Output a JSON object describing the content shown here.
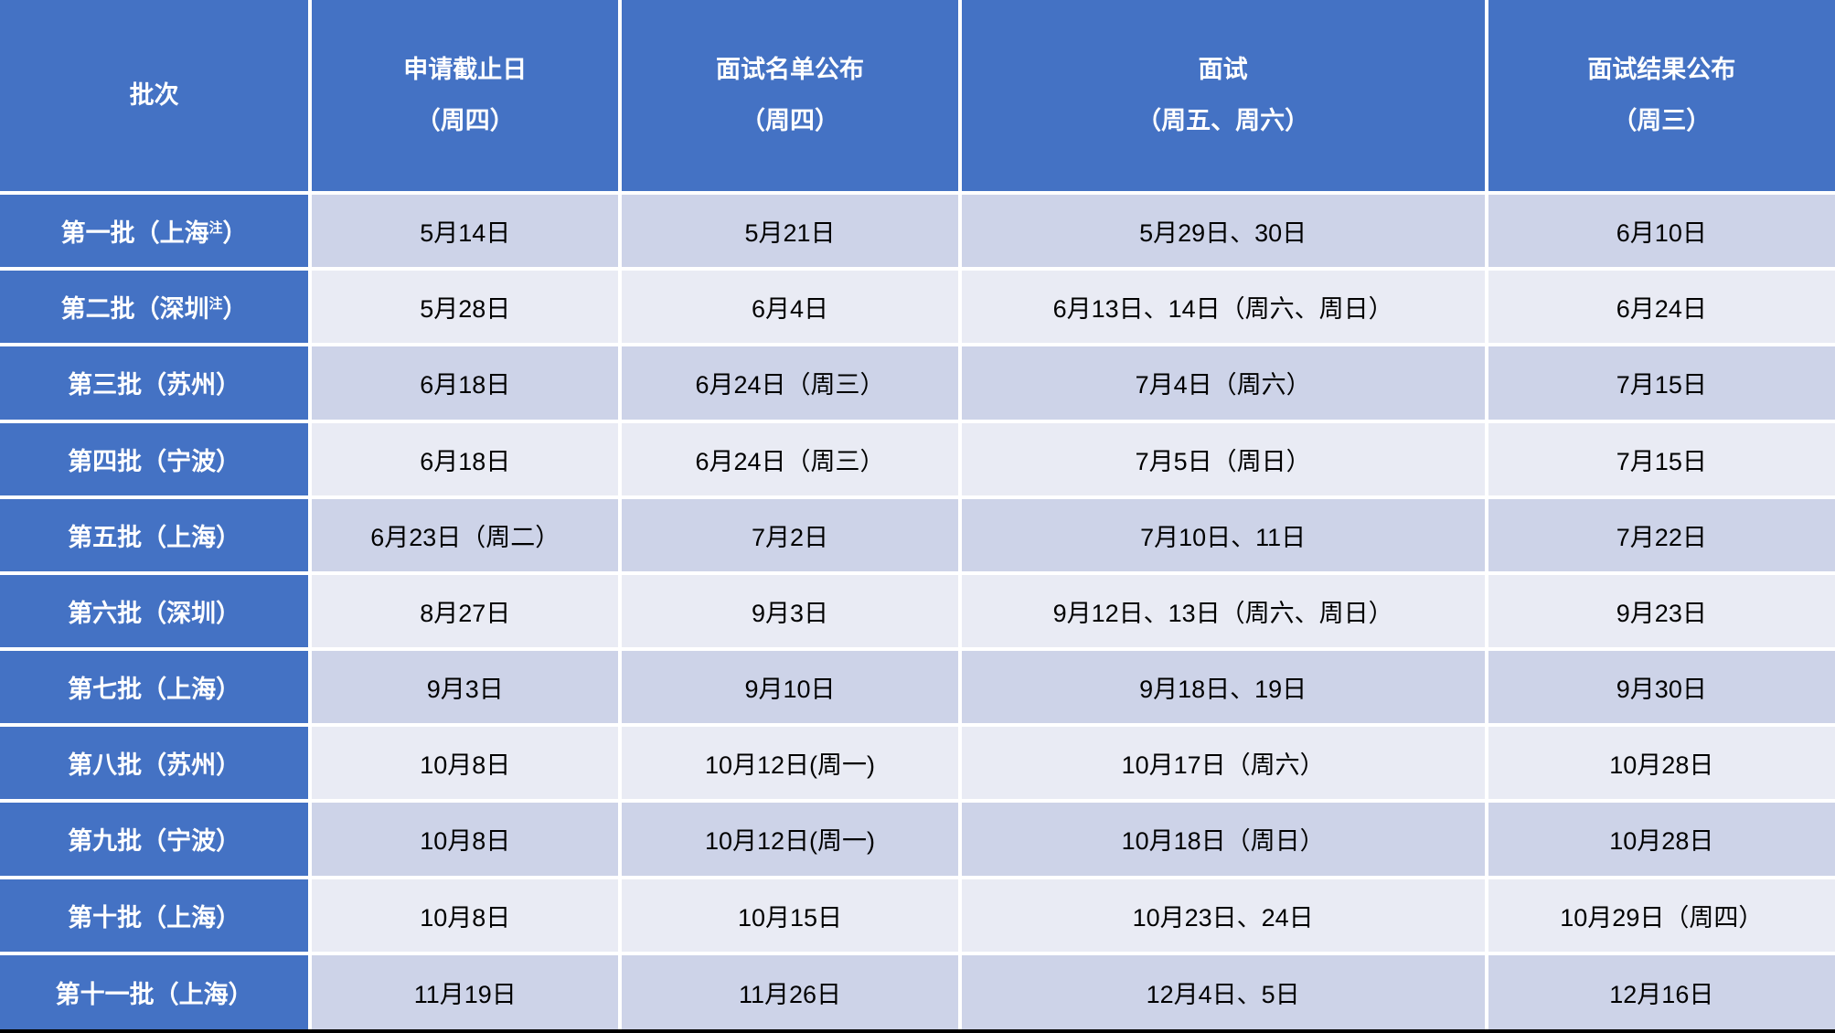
{
  "colors": {
    "header_bg": "#4472C4",
    "row_band_dark": "#CDD3E8",
    "row_band_light": "#E9EBF4",
    "header_text": "#FFFFFF",
    "body_text": "#000000",
    "grid_line": "#FFFFFF",
    "bottom_border": "#000000"
  },
  "table": {
    "columns": [
      {
        "line1": "批次",
        "line2": ""
      },
      {
        "line1": "申请截止日",
        "line2": "（周四）"
      },
      {
        "line1": "面试名单公布",
        "line2": "（周四）"
      },
      {
        "line1": "面试",
        "line2": "（周五、周六）"
      },
      {
        "line1": "面试结果公布",
        "line2": "（周三）"
      }
    ],
    "rows": [
      {
        "batch_prefix": "第一批（上海",
        "batch_sup": "注",
        "batch_suffix": "）",
        "deadline": "5月14日",
        "list_publish": "5月21日",
        "interview": "5月29日、30日",
        "result": "6月10日"
      },
      {
        "batch_prefix": "第二批（深圳",
        "batch_sup": "注",
        "batch_suffix": "）",
        "deadline": "5月28日",
        "list_publish": "6月4日",
        "interview": "6月13日、14日（周六、周日）",
        "result": "6月24日"
      },
      {
        "batch_prefix": "第三批（苏州）",
        "batch_sup": "",
        "batch_suffix": "",
        "deadline": "6月18日",
        "list_publish": "6月24日（周三）",
        "interview": "7月4日（周六）",
        "result": "7月15日"
      },
      {
        "batch_prefix": "第四批（宁波）",
        "batch_sup": "",
        "batch_suffix": "",
        "deadline": "6月18日",
        "list_publish": "6月24日（周三）",
        "interview": "7月5日（周日）",
        "result": "7月15日"
      },
      {
        "batch_prefix": "第五批（上海）",
        "batch_sup": "",
        "batch_suffix": "",
        "deadline": "6月23日（周二）",
        "list_publish": "7月2日",
        "interview": "7月10日、11日",
        "result": "7月22日"
      },
      {
        "batch_prefix": "第六批（深圳）",
        "batch_sup": "",
        "batch_suffix": "",
        "deadline": "8月27日",
        "list_publish": "9月3日",
        "interview": "9月12日、13日（周六、周日）",
        "result": "9月23日"
      },
      {
        "batch_prefix": "第七批（上海）",
        "batch_sup": "",
        "batch_suffix": "",
        "deadline": "9月3日",
        "list_publish": "9月10日",
        "interview": "9月18日、19日",
        "result": "9月30日"
      },
      {
        "batch_prefix": "第八批（苏州）",
        "batch_sup": "",
        "batch_suffix": "",
        "deadline": "10月8日",
        "list_publish": "10月12日(周一)",
        "interview": "10月17日（周六）",
        "result": "10月28日"
      },
      {
        "batch_prefix": "第九批（宁波）",
        "batch_sup": "",
        "batch_suffix": "",
        "deadline": "10月8日",
        "list_publish": "10月12日(周一)",
        "interview": "10月18日（周日）",
        "result": "10月28日"
      },
      {
        "batch_prefix": "第十批（上海）",
        "batch_sup": "",
        "batch_suffix": "",
        "deadline": "10月8日",
        "list_publish": "10月15日",
        "interview": "10月23日、24日",
        "result": "10月29日（周四）"
      },
      {
        "batch_prefix": "第十一批（上海）",
        "batch_sup": "",
        "batch_suffix": "",
        "deadline": "11月19日",
        "list_publish": "11月26日",
        "interview": "12月4日、5日",
        "result": "12月16日"
      }
    ]
  }
}
